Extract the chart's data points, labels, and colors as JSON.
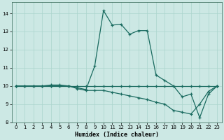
{
  "xlabel": "Humidex (Indice chaleur)",
  "bg_color": "#cce8e4",
  "grid_color": "#aad4cc",
  "line_color": "#1a6b60",
  "xlim": [
    -0.5,
    23.5
  ],
  "ylim": [
    8,
    14.6
  ],
  "yticks": [
    8,
    9,
    10,
    11,
    12,
    13,
    14
  ],
  "xticks": [
    0,
    1,
    2,
    3,
    4,
    5,
    6,
    7,
    8,
    9,
    10,
    11,
    12,
    13,
    14,
    15,
    16,
    17,
    18,
    19,
    20,
    21,
    22,
    23
  ],
  "series1_x": [
    0,
    1,
    2,
    3,
    4,
    5,
    6,
    7,
    8,
    9,
    10,
    11,
    12,
    13,
    14,
    15,
    16,
    17,
    18,
    19,
    20,
    21,
    22,
    23
  ],
  "series1_y": [
    10,
    10,
    10,
    10,
    10,
    10,
    10,
    10,
    10,
    10,
    10,
    10,
    10,
    10,
    10,
    10,
    10,
    10,
    10,
    10,
    10,
    10,
    10,
    10
  ],
  "series2_x": [
    0,
    1,
    2,
    3,
    4,
    5,
    6,
    7,
    8,
    9,
    10,
    11,
    12,
    13,
    14,
    15,
    16,
    17,
    18,
    19,
    20,
    21,
    22,
    23
  ],
  "series2_y": [
    10,
    10,
    10,
    10,
    10,
    10,
    10,
    9.85,
    9.75,
    9.75,
    9.75,
    9.65,
    9.55,
    9.45,
    9.35,
    9.25,
    9.1,
    9.0,
    8.65,
    8.55,
    8.45,
    9.0,
    9.7,
    10.0
  ],
  "series3_x": [
    0,
    1,
    2,
    3,
    4,
    5,
    6,
    7,
    8,
    9,
    10,
    11,
    12,
    13,
    14,
    15,
    16,
    17,
    18,
    19,
    20,
    21,
    22,
    23
  ],
  "series3_y": [
    10,
    10,
    10,
    10,
    10.05,
    10.05,
    10.0,
    9.9,
    9.8,
    11.1,
    14.15,
    13.35,
    13.4,
    12.85,
    13.05,
    13.05,
    10.6,
    10.3,
    10.0,
    9.4,
    9.55,
    8.25,
    9.55,
    10.0
  ]
}
